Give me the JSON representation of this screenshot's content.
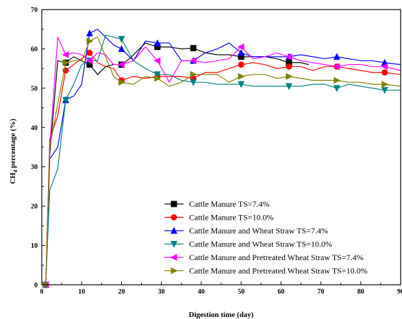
{
  "chart_data": {
    "type": "line",
    "xlabel": "Digestion time (day)",
    "ylabel_main": "CH",
    "ylabel_sub": "4",
    "ylabel_rest": " percentage (%)",
    "xlim": [
      0,
      90
    ],
    "ylim": [
      0,
      70
    ],
    "xticks": [
      0,
      10,
      20,
      30,
      40,
      50,
      60,
      70,
      80,
      90
    ],
    "yticks": [
      0,
      10,
      20,
      30,
      40,
      50,
      60,
      70
    ],
    "legend_position": "center-right",
    "series": [
      {
        "name": "Cattle Manure TS=7.4%",
        "color": "#000000",
        "marker": "square",
        "x": [
          1,
          2,
          4,
          6,
          8,
          10,
          12,
          14,
          16,
          18,
          20,
          22,
          24,
          26,
          29,
          32,
          35,
          38,
          41,
          44,
          47,
          50,
          53,
          56,
          59,
          62,
          65,
          67
        ],
        "y": [
          0,
          33,
          57,
          56.5,
          58,
          57,
          56,
          53.5,
          55.5,
          56,
          56,
          57.5,
          59.5,
          61.5,
          60.5,
          60.5,
          60,
          60.2,
          59,
          58.5,
          58.5,
          58,
          58,
          58,
          57.5,
          56.5,
          56.5,
          56
        ],
        "marker_x": [
          1,
          6,
          12,
          20,
          29,
          38,
          50,
          62
        ]
      },
      {
        "name": "Cattle Manure TS=10.0%",
        "color": "#ff0000",
        "marker": "circle",
        "x": [
          1,
          2,
          4,
          6,
          8,
          10,
          12,
          14,
          16,
          18,
          20,
          23,
          26,
          29,
          32,
          35,
          38,
          41,
          44,
          47,
          50,
          53,
          56,
          59,
          62,
          65,
          68,
          71,
          74,
          77,
          80,
          83,
          86,
          90
        ],
        "y": [
          0,
          37,
          43,
          54.5,
          56,
          57.5,
          59,
          56.5,
          55.5,
          55,
          52,
          53,
          52.5,
          53,
          53,
          53,
          52.5,
          54,
          54,
          55,
          56,
          56.5,
          56,
          55,
          55.5,
          55.5,
          54.5,
          55.5,
          55.5,
          55,
          54.5,
          54,
          54,
          53.5
        ],
        "marker_x": [
          1,
          6,
          12,
          20,
          29,
          38,
          50,
          62,
          74,
          86
        ]
      },
      {
        "name": "Cattle Manure and Wheat Straw TS=7.4%",
        "color": "#0000ff",
        "marker": "triangle-up",
        "x": [
          1,
          2,
          4,
          6,
          8,
          10,
          12,
          14,
          16,
          18,
          20,
          23,
          26,
          29,
          32,
          35,
          38,
          41,
          44,
          47,
          50,
          53,
          56,
          59,
          62,
          65,
          68,
          71,
          74,
          77,
          80,
          83,
          86,
          90
        ],
        "y": [
          0,
          32,
          35,
          47,
          48,
          51,
          64,
          65,
          63,
          61,
          60,
          57,
          62,
          61.5,
          61.5,
          57,
          57,
          59,
          60,
          61.5,
          59,
          58,
          58,
          58,
          58,
          58.5,
          58,
          57.5,
          58,
          57.5,
          57,
          57,
          56.5,
          56
        ],
        "marker_x": [
          1,
          6,
          12,
          20,
          29,
          38,
          50,
          62,
          74,
          86
        ]
      },
      {
        "name": "Cattle Manure and Wheat Straw TS=10.0%",
        "color": "#008080",
        "marker": "triangle-down",
        "x": [
          1,
          2,
          4,
          6,
          8,
          10,
          12,
          14,
          16,
          18,
          20,
          23,
          26,
          29,
          32,
          35,
          38,
          41,
          44,
          47,
          50,
          53,
          56,
          59,
          62,
          65,
          68,
          71,
          74,
          77,
          80,
          83,
          86,
          90
        ],
        "y": [
          0,
          24,
          29.5,
          47,
          51,
          56,
          57,
          57,
          63.5,
          63,
          62.5,
          57,
          55,
          53.5,
          53.5,
          52,
          51.5,
          51.5,
          51,
          51,
          51,
          50.5,
          50.5,
          50.5,
          50.5,
          50.5,
          51,
          51,
          50,
          51,
          50.5,
          50,
          49.5,
          49.5
        ],
        "marker_x": [
          1,
          6,
          12,
          20,
          29,
          38,
          50,
          62,
          74,
          86
        ]
      },
      {
        "name": "Cattle Manure and Pretreated Wheat Straw TS=7.4%",
        "color": "#ff00ff",
        "marker": "triangle-left",
        "x": [
          1,
          2,
          4,
          6,
          8,
          10,
          12,
          14,
          16,
          18,
          20,
          23,
          26,
          29,
          32,
          35,
          38,
          41,
          44,
          47,
          50,
          53,
          56,
          59,
          62,
          65,
          68,
          71,
          74,
          77,
          80,
          83,
          86,
          90
        ],
        "y": [
          0,
          35,
          63,
          58.5,
          59,
          58.5,
          57,
          59,
          58.5,
          56,
          56,
          57,
          60.5,
          57,
          51.5,
          57,
          57,
          56.5,
          57,
          57.5,
          60.5,
          57.5,
          58,
          59,
          58,
          57,
          56.5,
          56,
          55.5,
          56,
          56,
          55.5,
          55.5,
          54.5
        ],
        "marker_x": [
          1,
          6,
          12,
          20,
          29,
          38,
          50,
          62,
          74,
          86
        ]
      },
      {
        "name": "Cattle Manure and Pretreated Wheat Straw TS=10.0%",
        "color": "#808000",
        "marker": "triangle-right",
        "x": [
          1,
          2,
          4,
          6,
          8,
          10,
          12,
          14,
          16,
          18,
          20,
          23,
          26,
          29,
          32,
          35,
          38,
          41,
          44,
          47,
          50,
          53,
          56,
          59,
          62,
          65,
          68,
          71,
          74,
          77,
          80,
          83,
          86,
          90
        ],
        "y": [
          0,
          35,
          46,
          56.5,
          57,
          57,
          62,
          63,
          58,
          53,
          51.5,
          51,
          53,
          52.5,
          50.5,
          51.5,
          53.5,
          53.5,
          53.5,
          51.5,
          53,
          53.5,
          53.5,
          52.5,
          53,
          52.5,
          52,
          52,
          52,
          51.5,
          51.5,
          51,
          51,
          50.5
        ],
        "marker_x": [
          1,
          6,
          12,
          20,
          29,
          38,
          50,
          62,
          74,
          86
        ]
      }
    ]
  }
}
